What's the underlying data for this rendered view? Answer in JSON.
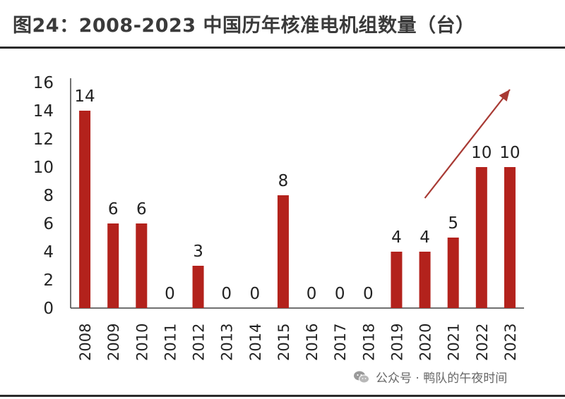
{
  "title": "图24：2008-2023 中国历年核准电机组数量（台）",
  "watermark": "公众号 · 鸭队的午夜时间",
  "chart_data": {
    "type": "bar",
    "title": "图24：2008-2023 中国历年核准电机组数量（台）",
    "categories": [
      "2008",
      "2009",
      "2010",
      "2011",
      "2012",
      "2013",
      "2014",
      "2015",
      "2016",
      "2017",
      "2018",
      "2019",
      "2020",
      "2021",
      "2022",
      "2023"
    ],
    "values": [
      14,
      6,
      6,
      0,
      3,
      0,
      0,
      8,
      0,
      0,
      0,
      4,
      4,
      5,
      10,
      10
    ],
    "ylim": [
      0,
      16
    ],
    "yticks": [
      0,
      2,
      4,
      6,
      8,
      10,
      12,
      14,
      16
    ],
    "grid": false,
    "legend": "none",
    "bar_color": "#b3221c",
    "arrow_color": "#a83a34",
    "annotations": [
      {
        "type": "arrow",
        "from": {
          "x": "2020",
          "y": 7.8
        },
        "to": {
          "x": "2023",
          "y": 15.5
        }
      }
    ]
  }
}
